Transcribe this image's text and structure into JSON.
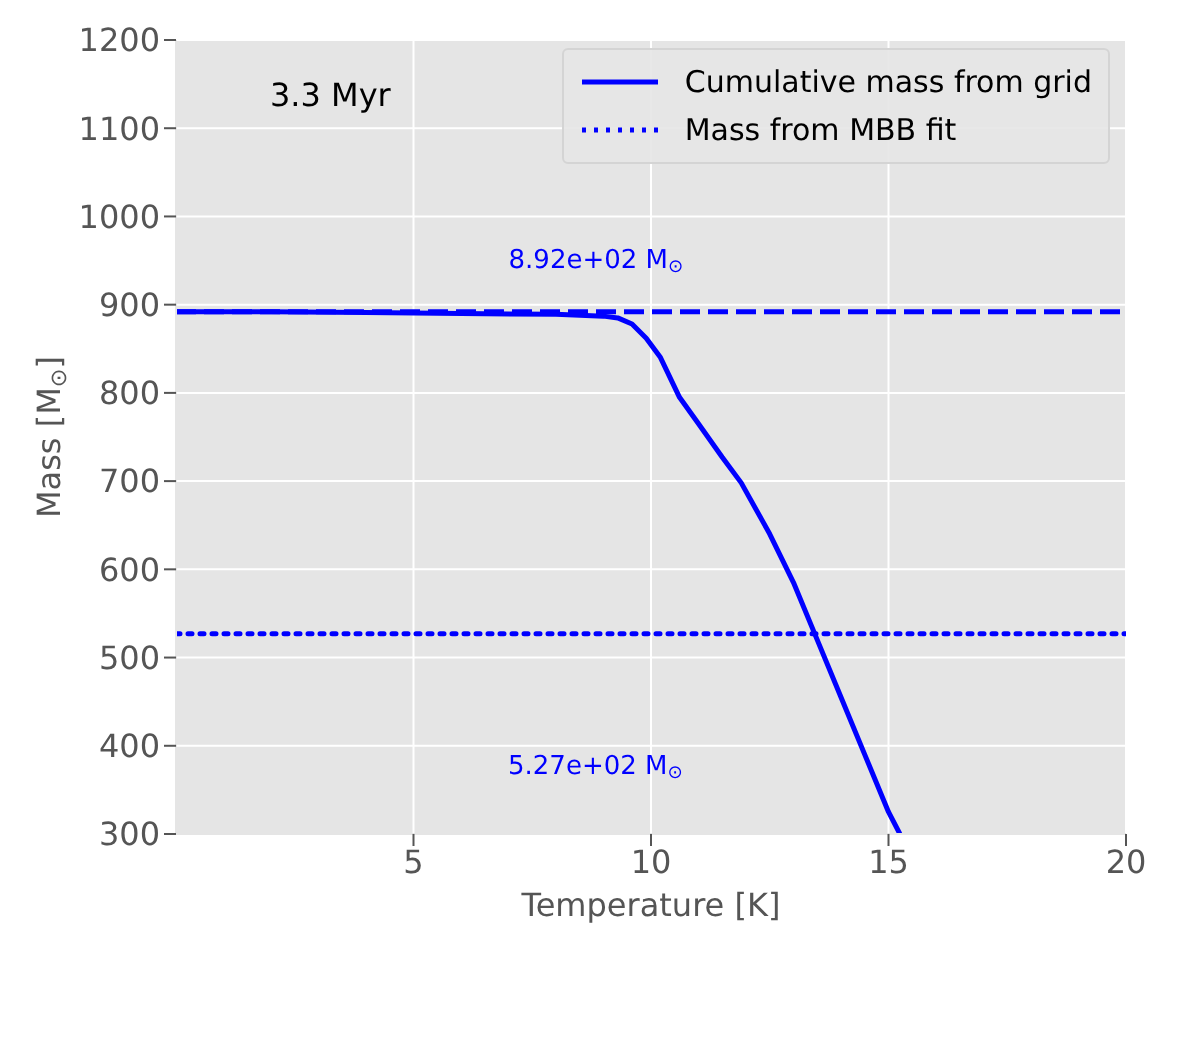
{
  "chart_data": {
    "type": "line",
    "xlabel": "Temperature [K]",
    "ylabel": "Mass [M$_{⊙}$]",
    "xlim": [
      0,
      20
    ],
    "xticks": [
      5,
      10,
      15,
      20
    ],
    "ylim": [
      300,
      1200
    ],
    "yticks": [
      300,
      400,
      500,
      600,
      700,
      800,
      900,
      1000,
      1100,
      1200
    ],
    "grid": true,
    "legend": "top right",
    "marker": "none",
    "series": [
      {
        "name": "Cumulative mass from grid",
        "color": "#0000ff",
        "line_style": "solid",
        "x": [
          0,
          2,
          4,
          6,
          8,
          9,
          9.3,
          9.6,
          9.9,
          10.2,
          10.6,
          11,
          11.5,
          11.9,
          12.5,
          13,
          13.5,
          14,
          14.5,
          15,
          15.24
        ],
        "values": [
          892,
          892,
          891,
          890,
          889,
          887,
          885,
          878,
          862,
          840,
          795,
          765,
          727,
          698,
          640,
          585,
          520,
          455,
          390,
          325,
          300
        ]
      },
      {
        "name": "Mass from MBB fit",
        "color": "#0000ff",
        "line_style": "dotted",
        "x": [
          0,
          20
        ],
        "values": [
          527,
          527
        ]
      }
    ],
    "ref_lines": [
      {
        "axis": "y",
        "value": 892,
        "color": "#0000ff",
        "line_style": "dashed",
        "label": "8.92e+02 M$_{⊙}$"
      }
    ],
    "annotations": [
      "3.3 Myr",
      "5.27e+02 M$_{⊙}$"
    ]
  }
}
